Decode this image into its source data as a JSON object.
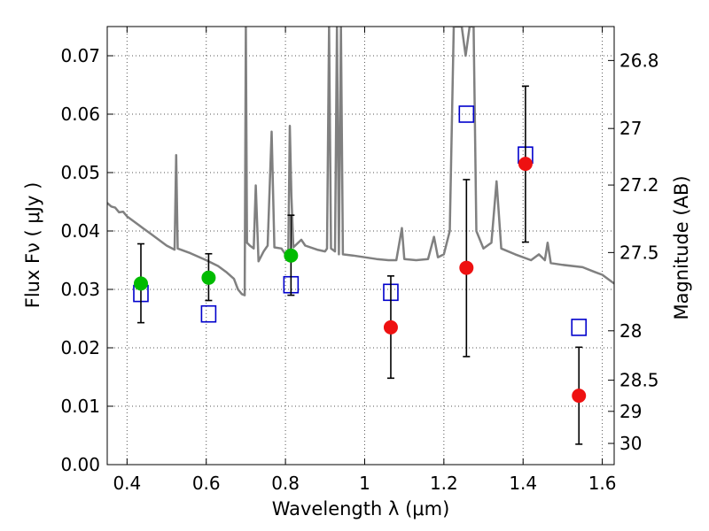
{
  "chart_data": {
    "type": "scatter",
    "xlabel": "Wavelength  λ (μm)",
    "ylabel": "Flux  Fν  ( μJy )",
    "ylabel_right": "Magnitude (AB)",
    "xlim": [
      0.35,
      1.63
    ],
    "ylim": [
      0.0,
      0.075
    ],
    "grid": true,
    "x_ticks": [
      0.4,
      0.6,
      0.8,
      1.0,
      1.2,
      1.4,
      1.6
    ],
    "x_tick_labels": [
      "0.4",
      "0.6",
      "0.8",
      "1",
      "1.2",
      "1.4",
      "1.6"
    ],
    "y_ticks": [
      0.0,
      0.01,
      0.02,
      0.03,
      0.04,
      0.05,
      0.06,
      0.07
    ],
    "y_tick_labels": [
      "0.00",
      "0.01",
      "0.02",
      "0.03",
      "0.04",
      "0.05",
      "0.06",
      "0.07"
    ],
    "right_ticks": [
      {
        "label": "26.8",
        "mag": 26.8
      },
      {
        "label": "27",
        "mag": 27.0
      },
      {
        "label": "27.2",
        "mag": 27.2
      },
      {
        "label": "27.5",
        "mag": 27.5
      },
      {
        "label": "28",
        "mag": 28.0
      },
      {
        "label": "28.5",
        "mag": 28.5
      },
      {
        "label": "29",
        "mag": 29.0
      },
      {
        "label": "30",
        "mag": 30.0
      }
    ],
    "series": [
      {
        "marker": "circle",
        "color": "#00bb00",
        "points": [
          {
            "x": 0.435,
            "y": 0.031,
            "err_low": 0.0243,
            "err_high": 0.0378
          },
          {
            "x": 0.606,
            "y": 0.032,
            "err_low": 0.0281,
            "err_high": 0.0361
          },
          {
            "x": 0.814,
            "y": 0.0358,
            "err_low": 0.029,
            "err_high": 0.0427
          }
        ]
      },
      {
        "marker": "circle",
        "color": "#ee1111",
        "points": [
          {
            "x": 1.066,
            "y": 0.0235,
            "err_low": 0.0148,
            "err_high": 0.0323
          },
          {
            "x": 1.257,
            "y": 0.0337,
            "err_low": 0.0185,
            "err_high": 0.0488
          },
          {
            "x": 1.406,
            "y": 0.0515,
            "err_low": 0.0381,
            "err_high": 0.0648
          },
          {
            "x": 1.541,
            "y": 0.0118,
            "err_low": 0.0035,
            "err_high": 0.0201
          }
        ]
      },
      {
        "marker": "open-square",
        "color": "#0000cc",
        "points": [
          {
            "x": 0.435,
            "y": 0.0293
          },
          {
            "x": 0.606,
            "y": 0.0258
          },
          {
            "x": 0.814,
            "y": 0.0308
          },
          {
            "x": 1.066,
            "y": 0.0295
          },
          {
            "x": 1.257,
            "y": 0.06
          },
          {
            "x": 1.406,
            "y": 0.053
          },
          {
            "x": 1.541,
            "y": 0.0235
          }
        ]
      },
      {
        "marker": "line",
        "color": "#808080",
        "points": [
          {
            "x": 0.35,
            "y": 0.0448
          },
          {
            "x": 0.36,
            "y": 0.0442
          },
          {
            "x": 0.37,
            "y": 0.044
          },
          {
            "x": 0.38,
            "y": 0.0432
          },
          {
            "x": 0.39,
            "y": 0.0433
          },
          {
            "x": 0.4,
            "y": 0.0425
          },
          {
            "x": 0.42,
            "y": 0.0415
          },
          {
            "x": 0.44,
            "y": 0.0405
          },
          {
            "x": 0.46,
            "y": 0.0395
          },
          {
            "x": 0.48,
            "y": 0.0385
          },
          {
            "x": 0.5,
            "y": 0.0375
          },
          {
            "x": 0.52,
            "y": 0.0368
          },
          {
            "x": 0.524,
            "y": 0.053
          },
          {
            "x": 0.528,
            "y": 0.037
          },
          {
            "x": 0.56,
            "y": 0.0362
          },
          {
            "x": 0.6,
            "y": 0.035
          },
          {
            "x": 0.63,
            "y": 0.034
          },
          {
            "x": 0.65,
            "y": 0.033
          },
          {
            "x": 0.67,
            "y": 0.0318
          },
          {
            "x": 0.68,
            "y": 0.03
          },
          {
            "x": 0.69,
            "y": 0.0292
          },
          {
            "x": 0.697,
            "y": 0.029
          },
          {
            "x": 0.7,
            "y": 0.075
          },
          {
            "x": 0.703,
            "y": 0.038
          },
          {
            "x": 0.71,
            "y": 0.0375
          },
          {
            "x": 0.72,
            "y": 0.037
          },
          {
            "x": 0.725,
            "y": 0.0478
          },
          {
            "x": 0.732,
            "y": 0.0348
          },
          {
            "x": 0.745,
            "y": 0.0365
          },
          {
            "x": 0.755,
            "y": 0.0375
          },
          {
            "x": 0.765,
            "y": 0.057
          },
          {
            "x": 0.772,
            "y": 0.0372
          },
          {
            "x": 0.79,
            "y": 0.037
          },
          {
            "x": 0.8,
            "y": 0.036
          },
          {
            "x": 0.807,
            "y": 0.035
          },
          {
            "x": 0.811,
            "y": 0.058
          },
          {
            "x": 0.815,
            "y": 0.046
          },
          {
            "x": 0.82,
            "y": 0.0372
          },
          {
            "x": 0.84,
            "y": 0.0385
          },
          {
            "x": 0.85,
            "y": 0.0375
          },
          {
            "x": 0.88,
            "y": 0.0368
          },
          {
            "x": 0.9,
            "y": 0.0365
          },
          {
            "x": 0.905,
            "y": 0.037
          },
          {
            "x": 0.91,
            "y": 0.075
          },
          {
            "x": 0.915,
            "y": 0.037
          },
          {
            "x": 0.925,
            "y": 0.0365
          },
          {
            "x": 0.93,
            "y": 0.075
          },
          {
            "x": 0.935,
            "y": 0.036
          },
          {
            "x": 0.94,
            "y": 0.075
          },
          {
            "x": 0.945,
            "y": 0.036
          },
          {
            "x": 0.97,
            "y": 0.0358
          },
          {
            "x": 1.0,
            "y": 0.0355
          },
          {
            "x": 1.03,
            "y": 0.0352
          },
          {
            "x": 1.06,
            "y": 0.035
          },
          {
            "x": 1.08,
            "y": 0.035
          },
          {
            "x": 1.094,
            "y": 0.0405
          },
          {
            "x": 1.1,
            "y": 0.0352
          },
          {
            "x": 1.13,
            "y": 0.035
          },
          {
            "x": 1.16,
            "y": 0.0352
          },
          {
            "x": 1.175,
            "y": 0.039
          },
          {
            "x": 1.185,
            "y": 0.0355
          },
          {
            "x": 1.2,
            "y": 0.036
          },
          {
            "x": 1.215,
            "y": 0.04
          },
          {
            "x": 1.225,
            "y": 0.075
          },
          {
            "x": 1.245,
            "y": 0.075
          },
          {
            "x": 1.255,
            "y": 0.07
          },
          {
            "x": 1.265,
            "y": 0.075
          },
          {
            "x": 1.275,
            "y": 0.075
          },
          {
            "x": 1.282,
            "y": 0.04
          },
          {
            "x": 1.3,
            "y": 0.037
          },
          {
            "x": 1.32,
            "y": 0.038
          },
          {
            "x": 1.333,
            "y": 0.0485
          },
          {
            "x": 1.345,
            "y": 0.037
          },
          {
            "x": 1.38,
            "y": 0.036
          },
          {
            "x": 1.42,
            "y": 0.035
          },
          {
            "x": 1.44,
            "y": 0.036
          },
          {
            "x": 1.455,
            "y": 0.035
          },
          {
            "x": 1.462,
            "y": 0.038
          },
          {
            "x": 1.47,
            "y": 0.0345
          },
          {
            "x": 1.5,
            "y": 0.0342
          },
          {
            "x": 1.55,
            "y": 0.0338
          },
          {
            "x": 1.58,
            "y": 0.033
          },
          {
            "x": 1.6,
            "y": 0.0325
          },
          {
            "x": 1.63,
            "y": 0.031
          }
        ]
      }
    ]
  }
}
